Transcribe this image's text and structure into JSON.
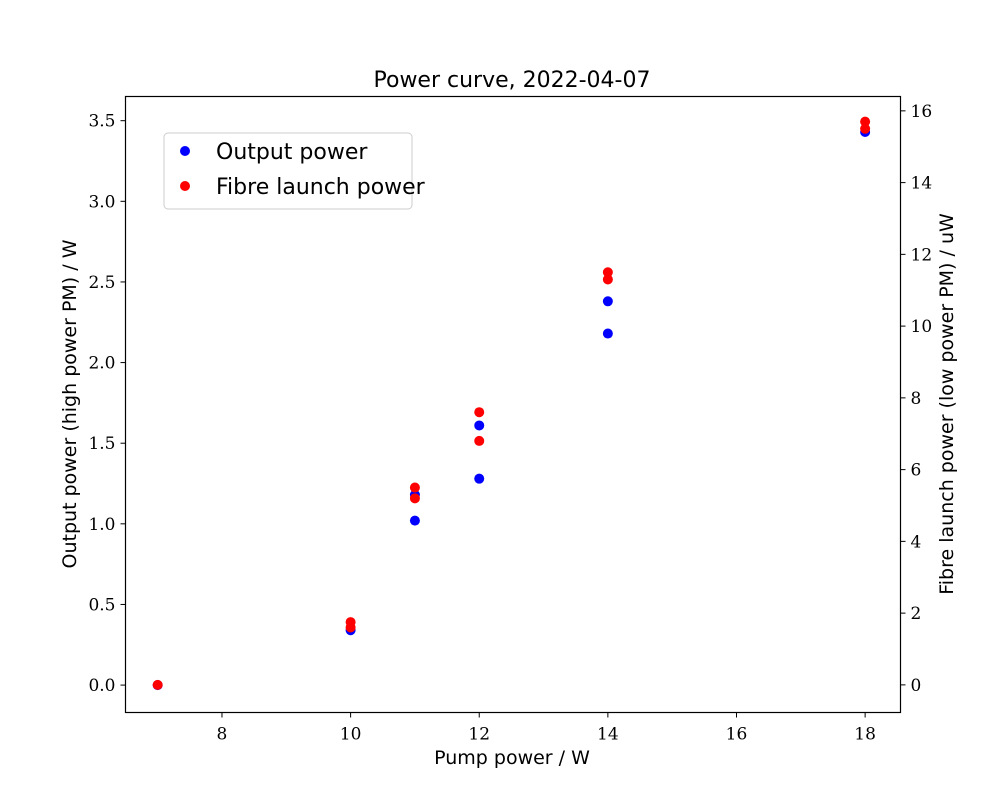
{
  "chart_data": {
    "type": "scatter",
    "title": "Power curve, 2022-04-07",
    "xlabel": "Pump power / W",
    "ylabel": "Output power (high power PM) / W",
    "y2label": "Fibre launch power (low power PM) / uW",
    "xlim": [
      6.5,
      18.55
    ],
    "ylim": [
      -0.17,
      3.65
    ],
    "y2lim": [
      -0.77,
      16.4
    ],
    "xticks": [
      8,
      10,
      12,
      14,
      16,
      18
    ],
    "yticks": [
      0.0,
      0.5,
      1.0,
      1.5,
      2.0,
      2.5,
      3.0,
      3.5
    ],
    "y2ticks": [
      0,
      2,
      4,
      6,
      8,
      10,
      12,
      14,
      16
    ],
    "xtick_labels": [
      "8",
      "10",
      "12",
      "14",
      "16",
      "18"
    ],
    "ytick_labels": [
      "0.0",
      "0.5",
      "1.0",
      "1.5",
      "2.0",
      "2.5",
      "3.0",
      "3.5"
    ],
    "y2tick_labels": [
      "0",
      "2",
      "4",
      "6",
      "8",
      "10",
      "12",
      "14",
      "16"
    ],
    "legend_position": "top-left",
    "grid": false,
    "series": [
      {
        "name": "Output power",
        "axis": "left",
        "color": "#0000ff",
        "points": [
          {
            "x": 7,
            "y": 0.0
          },
          {
            "x": 10,
            "y": 0.34
          },
          {
            "x": 11,
            "y": 1.02
          },
          {
            "x": 11,
            "y": 1.18
          },
          {
            "x": 12,
            "y": 1.28
          },
          {
            "x": 12,
            "y": 1.61
          },
          {
            "x": 14,
            "y": 2.18
          },
          {
            "x": 14,
            "y": 2.38
          },
          {
            "x": 18,
            "y": 3.43
          }
        ]
      },
      {
        "name": "Fibre launch power",
        "axis": "right",
        "color": "#ff0000",
        "points": [
          {
            "x": 7,
            "y": 0.0
          },
          {
            "x": 10,
            "y": 1.6
          },
          {
            "x": 10,
            "y": 1.75
          },
          {
            "x": 11,
            "y": 5.2
          },
          {
            "x": 11,
            "y": 5.5
          },
          {
            "x": 12,
            "y": 6.8
          },
          {
            "x": 12,
            "y": 7.6
          },
          {
            "x": 14,
            "y": 11.3
          },
          {
            "x": 14,
            "y": 11.5
          },
          {
            "x": 18,
            "y": 15.5
          },
          {
            "x": 18,
            "y": 15.7
          }
        ]
      }
    ]
  }
}
